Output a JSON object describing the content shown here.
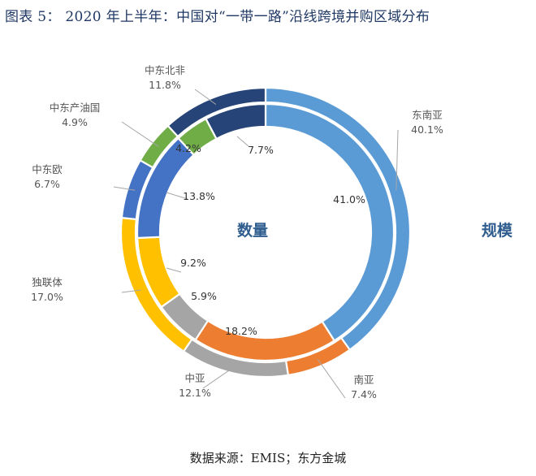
{
  "figure": {
    "title": "图表 5： 2020 年上半年：中国对“一带一路”沿线跨境并购区域分布",
    "source": "数据来源：EMIS；东方金城"
  },
  "chart_data": {
    "type": "pie",
    "style": "nested-donut",
    "rings": [
      {
        "name": "规模",
        "position": "outer",
        "series": [
          {
            "category": "东南亚",
            "value": 40.1,
            "label": "40.1%",
            "color": "#5b9bd5"
          },
          {
            "category": "南亚",
            "value": 7.4,
            "label": "7.4%",
            "color": "#ed7d31"
          },
          {
            "category": "中亚",
            "value": 12.1,
            "label": "12.1%",
            "color": "#a5a5a5"
          },
          {
            "category": "独联体",
            "value": 17.0,
            "label": "17.0%",
            "color": "#ffc000"
          },
          {
            "category": "中东欧",
            "value": 6.7,
            "label": "6.7%",
            "color": "#4472c4"
          },
          {
            "category": "中东产油国",
            "value": 4.9,
            "label": "4.9%",
            "color": "#70ad47"
          },
          {
            "category": "中东北非",
            "value": 11.8,
            "label": "11.8%",
            "color": "#264478"
          }
        ]
      },
      {
        "name": "数量",
        "position": "inner",
        "series": [
          {
            "category": "东南亚",
            "value": 41.0,
            "label": "41.0%",
            "color": "#5b9bd5"
          },
          {
            "category": "南亚",
            "value": 18.2,
            "label": "18.2%",
            "color": "#ed7d31"
          },
          {
            "category": "中亚",
            "value": 5.9,
            "label": "5.9%",
            "color": "#a5a5a5"
          },
          {
            "category": "独联体",
            "value": 9.2,
            "label": "9.2%",
            "color": "#ffc000"
          },
          {
            "category": "中东欧",
            "value": 13.8,
            "label": "13.8%",
            "color": "#4472c4"
          },
          {
            "category": "中东产油国",
            "value": 4.2,
            "label": "4.2%",
            "color": "#70ad47"
          },
          {
            "category": "中东北非",
            "value": 7.7,
            "label": "7.7%",
            "color": "#264478"
          }
        ]
      }
    ]
  }
}
